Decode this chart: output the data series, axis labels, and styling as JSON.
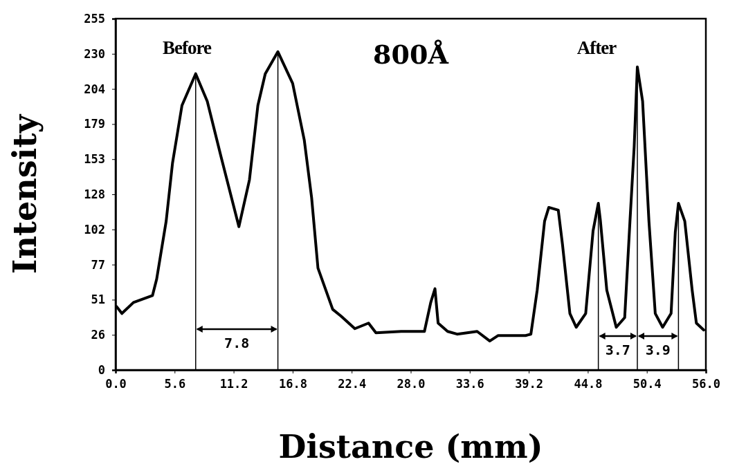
{
  "chart_data": {
    "type": "line",
    "title": "800Å",
    "xlabel": "Distance (mm)",
    "ylabel": "Intensity",
    "xlim": [
      0,
      56
    ],
    "xticks": [
      {
        "value": 0,
        "label": "0.0"
      },
      5.6,
      11.2,
      16.8,
      22.4,
      {
        "value": 28,
        "label": "28.0"
      },
      33.6,
      39.2,
      44.8,
      50.4,
      {
        "value": 56,
        "label": "56.0"
      }
    ],
    "ylim": [
      0,
      255
    ],
    "yticks": [
      0,
      {
        "value": 25.5,
        "label": "26"
      },
      51,
      {
        "value": 76.5,
        "label": "77"
      },
      102,
      {
        "value": 127.5,
        "label": "128"
      },
      153,
      {
        "value": 178.5,
        "label": "179"
      },
      204,
      {
        "value": 229.5,
        "label": "230"
      },
      255
    ],
    "grid": false,
    "marker": "none",
    "line_style": "solid",
    "series": [
      {
        "color": "#000000",
        "x": [
          0.1,
          0.6,
          1.7,
          3.5,
          3.9,
          4.8,
          5.4,
          6.3,
          7.6,
          8.7,
          10.0,
          11.7,
          12.7,
          13.5,
          14.2,
          15.4,
          16.8,
          17.9,
          18.6,
          19.2,
          20.6,
          21.4,
          22.7,
          24.0,
          24.7,
          27.1,
          29.3,
          29.9,
          30.3,
          30.6,
          31.5,
          32.4,
          34.3,
          35.5,
          36.3,
          38.9,
          39.4,
          40.0,
          40.7,
          41.1,
          42.0,
          42.4,
          43.1,
          43.7,
          44.6,
          45.3,
          45.8,
          46.0,
          46.6,
          47.5,
          48.3,
          48.8,
          49.2,
          49.5,
          50.0,
          50.6,
          51.2,
          51.9,
          52.7,
          53.1,
          53.4,
          54.0,
          54.7,
          55.1,
          55.8
        ],
        "values": [
          46,
          41,
          49,
          54,
          66,
          108,
          150,
          192,
          215,
          195,
          155,
          104,
          138,
          192,
          215,
          231,
          208,
          167,
          125,
          74,
          44,
          39,
          30,
          34,
          27,
          28,
          28,
          49,
          59,
          34,
          28,
          26,
          28,
          21,
          25,
          25,
          26,
          58,
          108,
          118,
          116,
          91,
          41,
          31,
          41,
          101,
          121,
          108,
          58,
          31,
          38,
          108,
          162,
          220,
          195,
          108,
          41,
          31,
          41,
          100,
          121,
          108,
          58,
          34,
          29
        ]
      }
    ],
    "ref_lines": [
      {
        "axis": "x",
        "value": 7.6
      },
      {
        "axis": "x",
        "value": 15.4
      },
      {
        "axis": "x",
        "value": 45.8
      },
      {
        "axis": "x",
        "value": 49.5
      },
      {
        "axis": "x",
        "value": 53.4
      }
    ],
    "annotations": [
      "Before",
      "After",
      "7.8",
      "3.7",
      "3.9"
    ]
  }
}
